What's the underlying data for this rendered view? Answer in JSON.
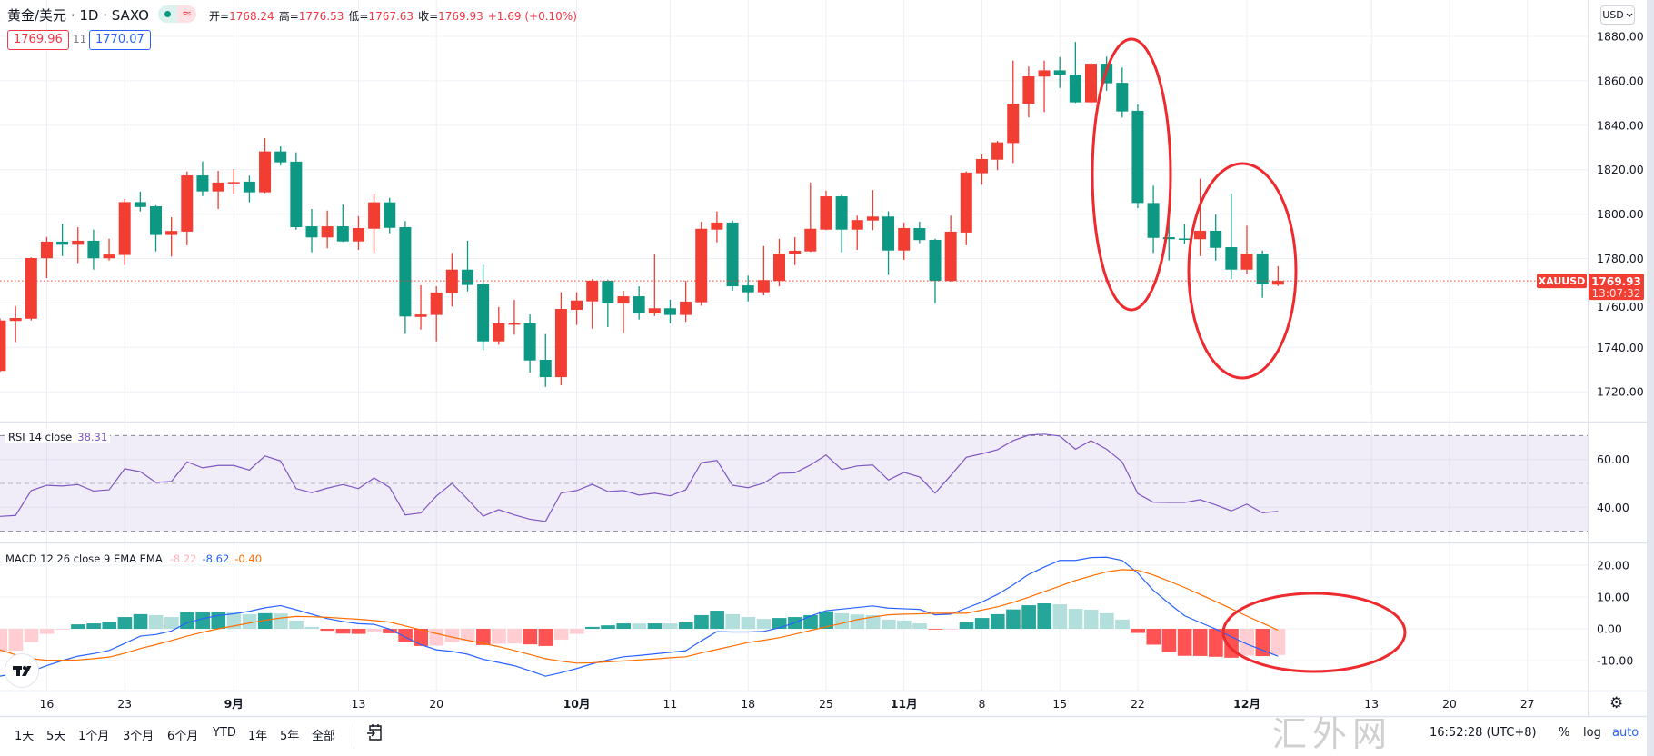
{
  "header": {
    "symbol_title": "黄金/美元 · 1D · SAXO",
    "status_icon": "market-status-dot-icon",
    "delayed_glyph": "≈",
    "ohlc": [
      {
        "label": "开=",
        "value": "1768.24"
      },
      {
        "label": "高=",
        "value": "1776.53"
      },
      {
        "label": "低=",
        "value": "1767.63"
      },
      {
        "label": "收=",
        "value": "1769.93"
      }
    ],
    "change": "+1.69 (+0.10%)",
    "sell_price": "1769.96",
    "spread": "11",
    "buy_price": "1770.07"
  },
  "price_axis": {
    "currency_button": "USD",
    "symbol_tag": "XAUUSD",
    "last_price_label": "1769.93",
    "countdown": "13:07:32"
  },
  "rsi_legend": {
    "name": "RSI 14 close",
    "value": "38.31"
  },
  "macd_legend": {
    "name": "MACD 12 26 close 9 EMA EMA",
    "histogram": "-8.22",
    "macd": "-8.62",
    "signal": "-0.40"
  },
  "toolbar": {
    "ranges": [
      "1天",
      "5天",
      "1个月",
      "3个月",
      "6个月",
      "YTD",
      "1年",
      "5年",
      "全部"
    ],
    "goto_icon": "goto-date-icon",
    "clock": "16:52:28 (UTC+8)",
    "percent": "%",
    "log": "log",
    "auto": "auto",
    "settings_icon": "gear-icon",
    "settings_glyph": "⚙"
  },
  "watermark": "汇外网",
  "colors": {
    "up": "#f23d33",
    "down": "#0c9882",
    "grid": "#eef0f5",
    "rsi_line": "#7e57c2",
    "rsi_band": "rgba(126,87,194,0.11)",
    "level_line": "#787b86",
    "hist_pos_up": "#26a69a",
    "hist_pos_down": "#b2dfdb",
    "hist_neg_down": "#ff5252",
    "hist_neg_up": "#ffcdd2",
    "macd_line": "#2962ff",
    "signal_line": "#ff6d00",
    "annotation": "#ee2a2f",
    "separator": "#e0e3eb"
  },
  "chart_data": [
    {
      "type": "bar",
      "style": "candlestick",
      "title": "黄金/美元 · 1D · SAXO",
      "last_price": 1769.93,
      "ylim": [
        1706.6,
        1896.4
      ],
      "grid": true,
      "yticks": [
        {
          "value": 1880,
          "label": "1880.00"
        },
        {
          "value": 1860,
          "label": "1860.00"
        },
        {
          "value": 1840,
          "label": "1840.00"
        },
        {
          "value": 1820,
          "label": "1820.00"
        },
        {
          "value": 1800,
          "label": "1800.00"
        },
        {
          "value": 1780,
          "label": "1780.00"
        },
        {
          "value": 1760,
          "label": "1760.00"
        },
        {
          "value": 1740,
          "label": "1740.00"
        },
        {
          "value": 1720,
          "label": "1720.00"
        }
      ],
      "xticks": [
        {
          "label": "16",
          "index": 3
        },
        {
          "label": "23",
          "index": 8
        },
        {
          "label": "9月",
          "index": 15
        },
        {
          "label": "13",
          "index": 23
        },
        {
          "label": "20",
          "index": 28
        },
        {
          "label": "10月",
          "index": 37
        },
        {
          "label": "11",
          "index": 43
        },
        {
          "label": "18",
          "index": 48
        },
        {
          "label": "25",
          "index": 53
        },
        {
          "label": "11月",
          "index": 58
        },
        {
          "label": "8",
          "index": 63
        },
        {
          "label": "15",
          "index": 68
        },
        {
          "label": "22",
          "index": 73
        },
        {
          "label": "12月",
          "index": 80
        },
        {
          "label": "13",
          "index": 88
        },
        {
          "label": "20",
          "index": 93
        },
        {
          "label": "27",
          "index": 98
        }
      ],
      "candles": [
        [
          1729.4,
          1753.0,
          1729.0,
          1752.1
        ],
        [
          1751.9,
          1758.6,
          1742.3,
          1753.2
        ],
        [
          1752.9,
          1780.5,
          1752.1,
          1780.2
        ],
        [
          1780.1,
          1789.7,
          1771.2,
          1787.6
        ],
        [
          1787.6,
          1795.7,
          1781.1,
          1786.2
        ],
        [
          1786.2,
          1794.1,
          1778.0,
          1788.0
        ],
        [
          1788.0,
          1793.0,
          1775.0,
          1780.1
        ],
        [
          1780.1,
          1788.9,
          1779.1,
          1781.8
        ],
        [
          1781.6,
          1806.8,
          1777.1,
          1805.4
        ],
        [
          1805.4,
          1810.1,
          1801.2,
          1803.2
        ],
        [
          1803.5,
          1803.9,
          1783.2,
          1790.6
        ],
        [
          1790.6,
          1798.6,
          1780.9,
          1792.4
        ],
        [
          1792.1,
          1819.2,
          1786.0,
          1817.4
        ],
        [
          1817.4,
          1823.7,
          1808.1,
          1810.2
        ],
        [
          1810.2,
          1819.5,
          1802.3,
          1814.2
        ],
        [
          1813.9,
          1820.3,
          1809.1,
          1814.4
        ],
        [
          1814.6,
          1817.3,
          1805.3,
          1809.8
        ],
        [
          1809.8,
          1834.2,
          1809.4,
          1828.2
        ],
        [
          1828.2,
          1830.5,
          1821.9,
          1823.3
        ],
        [
          1823.6,
          1827.8,
          1793.0,
          1794.1
        ],
        [
          1794.5,
          1802.3,
          1782.8,
          1789.5
        ],
        [
          1789.5,
          1801.6,
          1784.6,
          1794.5
        ],
        [
          1794.5,
          1804.3,
          1787.5,
          1787.7
        ],
        [
          1787.7,
          1799.1,
          1783.9,
          1793.7
        ],
        [
          1793.4,
          1809.1,
          1782.5,
          1805.3
        ],
        [
          1805.3,
          1807.3,
          1791.4,
          1793.8
        ],
        [
          1794.1,
          1796.9,
          1746.1,
          1753.9
        ],
        [
          1753.7,
          1768.0,
          1748.0,
          1754.8
        ],
        [
          1754.6,
          1767.5,
          1742.7,
          1764.7
        ],
        [
          1764.4,
          1782.5,
          1758.4,
          1775.0
        ],
        [
          1775.0,
          1788.0,
          1765.2,
          1768.1
        ],
        [
          1768.5,
          1777.1,
          1738.6,
          1742.7
        ],
        [
          1742.7,
          1758.2,
          1741.2,
          1750.8
        ],
        [
          1750.4,
          1761.4,
          1745.7,
          1750.8
        ],
        [
          1750.8,
          1754.8,
          1728.7,
          1734.1
        ],
        [
          1734.4,
          1746.0,
          1722.2,
          1726.6
        ],
        [
          1726.6,
          1764.8,
          1722.9,
          1757.3
        ],
        [
          1756.9,
          1764.8,
          1750.1,
          1761.1
        ],
        [
          1760.7,
          1770.7,
          1748.4,
          1770.0
        ],
        [
          1770.0,
          1770.5,
          1749.1,
          1759.8
        ],
        [
          1759.8,
          1765.5,
          1746.4,
          1763.0
        ],
        [
          1763.0,
          1767.5,
          1752.5,
          1755.3
        ],
        [
          1755.3,
          1781.8,
          1754.1,
          1757.6
        ],
        [
          1757.6,
          1761.4,
          1750.8,
          1754.6
        ],
        [
          1754.6,
          1769.9,
          1751.5,
          1760.6
        ],
        [
          1760.3,
          1796.6,
          1758.7,
          1793.4
        ],
        [
          1793.0,
          1801.2,
          1787.3,
          1796.2
        ],
        [
          1796.2,
          1797.1,
          1765.5,
          1767.5
        ],
        [
          1767.9,
          1772.3,
          1760.7,
          1764.8
        ],
        [
          1764.8,
          1785.6,
          1763.4,
          1770.3
        ],
        [
          1769.9,
          1788.9,
          1767.5,
          1782.2
        ],
        [
          1782.1,
          1789.6,
          1777.1,
          1783.5
        ],
        [
          1783.2,
          1814.2,
          1782.9,
          1793.4
        ],
        [
          1793.0,
          1810.5,
          1792.8,
          1808.0
        ],
        [
          1808.0,
          1808.7,
          1782.8,
          1793.0
        ],
        [
          1793.0,
          1799.3,
          1783.9,
          1797.3
        ],
        [
          1797.1,
          1810.8,
          1792.8,
          1798.9
        ],
        [
          1798.9,
          1801.3,
          1772.6,
          1783.6
        ],
        [
          1783.6,
          1796.2,
          1779.4,
          1793.7
        ],
        [
          1793.7,
          1796.6,
          1786.9,
          1788.3
        ],
        [
          1788.4,
          1788.9,
          1759.8,
          1769.9
        ],
        [
          1769.9,
          1799.3,
          1769.6,
          1792.1
        ],
        [
          1791.7,
          1819.2,
          1786.0,
          1818.7
        ],
        [
          1818.4,
          1826.8,
          1813.2,
          1824.8
        ],
        [
          1824.5,
          1833.0,
          1819.8,
          1832.3
        ],
        [
          1832.0,
          1869.1,
          1823.0,
          1849.7
        ],
        [
          1849.6,
          1866.4,
          1843.5,
          1862.0
        ],
        [
          1861.9,
          1869.1,
          1845.9,
          1864.7
        ],
        [
          1864.7,
          1870.7,
          1856.8,
          1862.7
        ],
        [
          1862.7,
          1877.5,
          1850.0,
          1850.3
        ],
        [
          1850.3,
          1868.0,
          1850.0,
          1867.7
        ],
        [
          1867.7,
          1870.9,
          1855.5,
          1858.9
        ],
        [
          1859.1,
          1866.0,
          1843.5,
          1846.2
        ],
        [
          1846.5,
          1849.3,
          1802.7,
          1805.0
        ],
        [
          1805.0,
          1812.8,
          1782.5,
          1789.3
        ],
        [
          1789.6,
          1796.8,
          1779.1,
          1788.7
        ],
        [
          1789.0,
          1795.5,
          1786.6,
          1788.7
        ],
        [
          1788.7,
          1815.9,
          1781.1,
          1792.5
        ],
        [
          1792.5,
          1799.8,
          1779.1,
          1784.8
        ],
        [
          1785.1,
          1809.3,
          1770.7,
          1775.0
        ],
        [
          1775.0,
          1794.8,
          1773.0,
          1782.2
        ],
        [
          1782.2,
          1783.6,
          1762.3,
          1768.5
        ],
        [
          1768.24,
          1776.53,
          1767.63,
          1769.93
        ]
      ]
    },
    {
      "type": "line",
      "title": "RSI 14 close",
      "ylim": [
        25.3,
        75.9
      ],
      "levels": [
        70,
        50,
        30
      ],
      "yticks": [
        {
          "value": 60,
          "label": "60.00"
        },
        {
          "value": 40,
          "label": "40.00"
        }
      ],
      "values": [
        36.2,
        36.6,
        47.0,
        49.2,
        48.9,
        49.5,
        46.8,
        47.3,
        56.1,
        54.9,
        50.4,
        50.8,
        59.0,
        56.5,
        57.5,
        57.5,
        55.6,
        61.5,
        59.4,
        47.8,
        46.1,
        48.0,
        49.5,
        47.8,
        52.3,
        48.3,
        36.8,
        37.6,
        44.7,
        50.0,
        43.4,
        36.3,
        39.0,
        36.8,
        35.0,
        34.1,
        46.0,
        47.0,
        49.6,
        46.6,
        47.0,
        45.1,
        45.9,
        44.8,
        47.3,
        58.7,
        59.6,
        49.2,
        48.2,
        50.1,
        54.2,
        54.4,
        57.7,
        61.9,
        55.8,
        57.3,
        57.7,
        51.4,
        54.6,
        52.7,
        45.9,
        53.3,
        60.9,
        62.4,
        64.1,
        67.9,
        70.2,
        70.6,
        69.8,
        64.3,
        67.9,
        64.3,
        59.0,
        45.7,
        42.1,
        42.0,
        42.0,
        43.2,
        41.0,
        38.5,
        41.3,
        37.7,
        38.31
      ]
    },
    {
      "type": "bar",
      "title": "MACD 12 26 close 9 EMA EMA",
      "ylim": [
        -19.4,
        27.1
      ],
      "yticks": [
        {
          "value": 20,
          "label": "20.00"
        },
        {
          "value": 10,
          "label": "10.00"
        },
        {
          "value": 0,
          "label": "0.00"
        },
        {
          "value": -10,
          "label": "-10.00"
        }
      ],
      "series": [
        {
          "name": "Histogram",
          "type": "bar",
          "values": [
            -7.2,
            -6.9,
            -4.2,
            -1.6,
            -0.1,
            1.4,
            1.7,
            2.1,
            3.7,
            4.6,
            4.3,
            3.7,
            5.2,
            5.25,
            5.3,
            5.2,
            4.6,
            4.9,
            4.8,
            2.6,
            0.6,
            -0.6,
            -1.5,
            -1.6,
            -1.1,
            -1.4,
            -4.0,
            -5.4,
            -5.3,
            -4.2,
            -3.7,
            -5.1,
            -4.7,
            -4.6,
            -4.9,
            -5.4,
            -3.4,
            -1.6,
            0.6,
            1.1,
            1.7,
            1.65,
            1.7,
            1.68,
            2.0,
            4.3,
            5.7,
            4.6,
            3.7,
            3.1,
            3.4,
            3.7,
            4.3,
            5.5,
            4.9,
            4.5,
            4.3,
            2.9,
            2.6,
            1.7,
            -0.2,
            -0.05,
            2.0,
            3.4,
            4.6,
            6.1,
            7.4,
            8.0,
            7.7,
            6.3,
            6.0,
            4.9,
            2.9,
            -1.3,
            -5.0,
            -7.3,
            -8.5,
            -8.55,
            -8.8,
            -9.1,
            -8.4,
            -8.6,
            -8.22
          ]
        },
        {
          "name": "MACD",
          "type": "line",
          "values": [
            -14.9,
            -14.0,
            -13.4,
            -11.6,
            -10.0,
            -8.6,
            -7.8,
            -6.8,
            -4.6,
            -2.3,
            -1.8,
            -0.7,
            1.9,
            3.2,
            4.2,
            4.7,
            5.5,
            6.6,
            7.3,
            6.0,
            4.6,
            3.2,
            2.3,
            1.6,
            1.4,
            -0.1,
            -2.6,
            -5.0,
            -6.6,
            -7.1,
            -8.0,
            -9.6,
            -10.6,
            -11.6,
            -13.2,
            -14.9,
            -13.8,
            -12.5,
            -11.0,
            -9.8,
            -8.8,
            -8.4,
            -7.9,
            -7.4,
            -6.9,
            -3.8,
            -0.9,
            -1.0,
            -1.0,
            -0.8,
            0.3,
            1.9,
            4.0,
            5.7,
            6.2,
            6.7,
            7.2,
            6.5,
            6.3,
            6.1,
            4.4,
            4.6,
            6.5,
            8.4,
            10.8,
            13.8,
            17.1,
            19.4,
            21.5,
            21.5,
            22.4,
            22.5,
            21.5,
            17.5,
            12.1,
            8.0,
            4.1,
            2.0,
            -0.1,
            -2.5,
            -4.8,
            -6.7,
            -8.62
          ]
        },
        {
          "name": "Signal",
          "type": "line",
          "values": [
            -6.6,
            -8.2,
            -9.4,
            -9.9,
            -9.9,
            -9.8,
            -9.4,
            -8.9,
            -7.7,
            -6.2,
            -5.0,
            -3.7,
            -2.3,
            -1.1,
            0.0,
            0.9,
            1.8,
            2.7,
            3.4,
            3.9,
            3.8,
            3.6,
            3.3,
            3.0,
            2.6,
            2.1,
            0.9,
            -0.3,
            -1.5,
            -2.6,
            -3.6,
            -4.6,
            -5.6,
            -6.8,
            -8.1,
            -9.4,
            -10.2,
            -10.8,
            -10.7,
            -10.4,
            -10.1,
            -9.8,
            -9.5,
            -9.1,
            -8.8,
            -7.6,
            -6.5,
            -5.4,
            -4.3,
            -3.6,
            -2.8,
            -1.7,
            -0.5,
            0.6,
            1.7,
            2.9,
            3.7,
            4.4,
            4.6,
            4.7,
            4.9,
            4.9,
            4.9,
            5.9,
            6.9,
            8.3,
            9.9,
            11.7,
            13.4,
            15.2,
            16.6,
            17.9,
            18.6,
            18.4,
            16.9,
            15.0,
            13.0,
            10.8,
            8.6,
            6.3,
            4.0,
            1.8,
            -0.4
          ]
        }
      ]
    }
  ]
}
